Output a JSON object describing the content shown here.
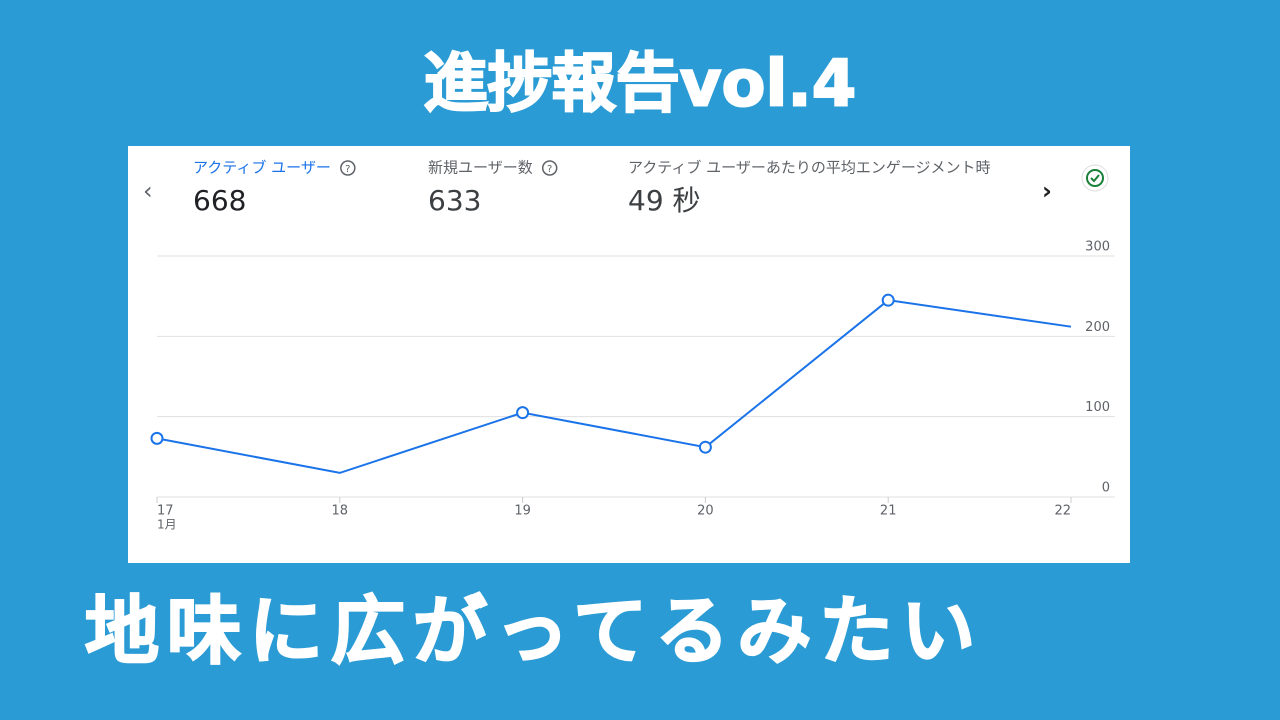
{
  "header": {
    "title": "進捗報告vol.4"
  },
  "metrics": [
    {
      "label": "アクティブ ユーザー",
      "value": "668"
    },
    {
      "label": "新規ユーザー数",
      "value": "633"
    },
    {
      "label": "アクティブ ユーザーあたりの平均エンゲージメント時",
      "value": "49 秒"
    }
  ],
  "chart_data": {
    "type": "line",
    "categories": [
      "17",
      "18",
      "19",
      "20",
      "21",
      "22"
    ],
    "x_sublabel": "1月",
    "values": [
      73,
      30,
      105,
      62,
      245,
      212
    ],
    "markers": [
      true,
      false,
      true,
      true,
      true,
      false
    ],
    "color": "#1a73e8",
    "ylim": [
      0,
      300
    ],
    "yticks": [
      0,
      100,
      200,
      300
    ],
    "grid": true
  },
  "caption": "地味に広がってるみたい"
}
